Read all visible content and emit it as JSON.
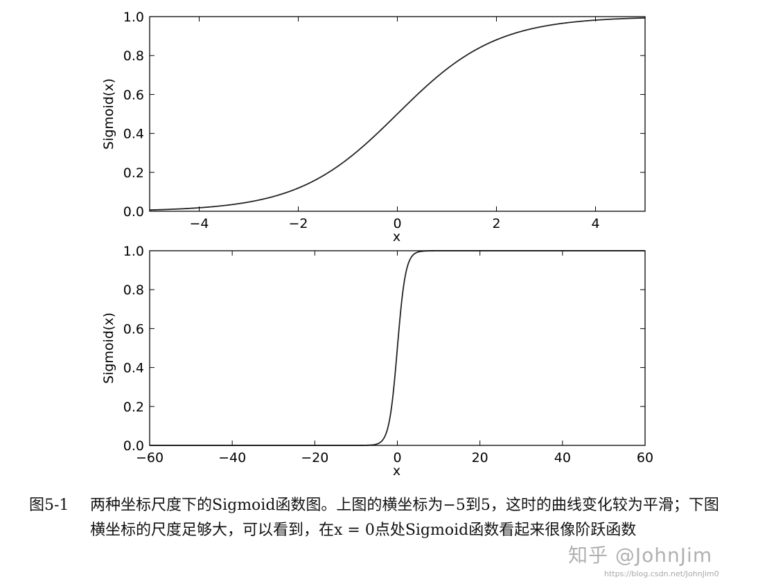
{
  "chart_data": [
    {
      "type": "line",
      "function": "sigmoid",
      "x": [
        -5,
        -4,
        -3,
        -2,
        -1,
        0,
        1,
        2,
        3,
        4,
        5
      ],
      "series": [
        {
          "values": [
            0.0067,
            0.018,
            0.0474,
            0.1192,
            0.2689,
            0.5,
            0.7311,
            0.8808,
            0.9526,
            0.982,
            0.9933
          ]
        }
      ],
      "xlabel": "x",
      "ylabel": "Sigmoid(x)",
      "xlim": [
        -5,
        5
      ],
      "ylim": [
        0.0,
        1.0
      ],
      "xticks": [
        "−4",
        "−2",
        "0",
        "2",
        "4"
      ],
      "yticks": [
        "0.0",
        "0.2",
        "0.4",
        "0.6",
        "0.8",
        "1.0"
      ],
      "grid": false
    },
    {
      "type": "line",
      "function": "sigmoid",
      "x": [
        -60,
        -40,
        -20,
        -5,
        -2,
        0,
        2,
        5,
        20,
        40,
        60
      ],
      "series": [
        {
          "values": [
            0.0,
            0.0,
            0.0,
            0.0067,
            0.1192,
            0.5,
            0.8808,
            0.9933,
            1.0,
            1.0,
            1.0
          ]
        }
      ],
      "xlabel": "x",
      "ylabel": "Sigmoid(x)",
      "xlim": [
        -60,
        60
      ],
      "ylim": [
        0.0,
        1.0
      ],
      "xticks": [
        "−60",
        "−40",
        "−20",
        "0",
        "20",
        "40",
        "60"
      ],
      "yticks": [
        "0.0",
        "0.2",
        "0.4",
        "0.6",
        "0.8",
        "1.0"
      ],
      "grid": false
    }
  ],
  "caption": {
    "number": "图5-1",
    "text": "两种坐标尺度下的Sigmoid函数图。上图的横坐标为−5到5，这时的曲线变化较为平滑；下图横坐标的尺度足够大，可以看到，在x = 0点处Sigmoid函数看起来很像阶跃函数"
  },
  "watermark": {
    "text": "知乎 @JohnJim",
    "url": "https://blog.csdn.net/JohnJim0"
  }
}
